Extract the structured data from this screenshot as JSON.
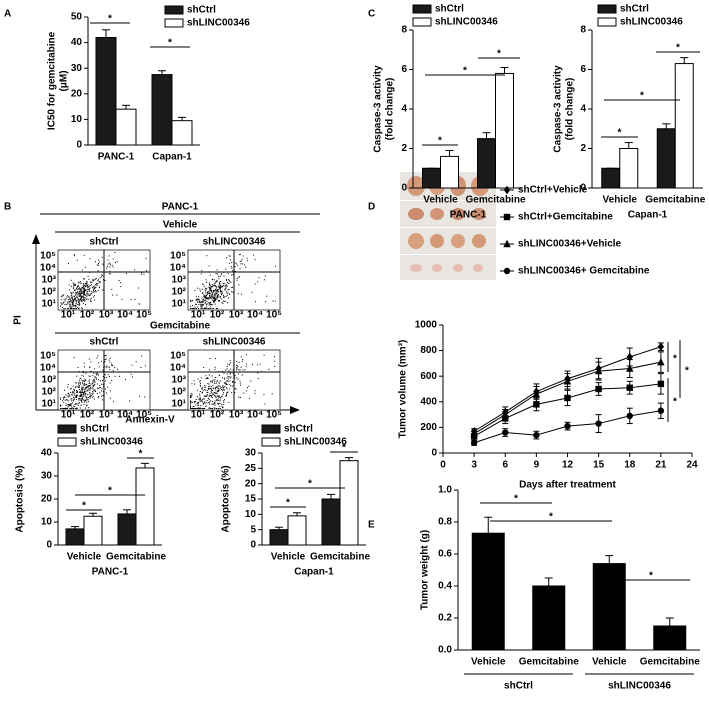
{
  "panel_labels": [
    "A",
    "B",
    "C",
    "D",
    "E"
  ],
  "flow_cytometry": {
    "title": "PANC-1",
    "vehicle": "Vehicle",
    "gemcitabine": "Gemcitabine",
    "groups": [
      "shCtrl",
      "shLINC00346"
    ],
    "y_axis": "PI",
    "x_axis": "Annexin-V",
    "axis_ticks": [
      "10¹",
      "10²",
      "10³",
      "10⁴",
      "10⁵"
    ]
  },
  "chart_data": [
    {
      "type": "bar",
      "categories": [
        "PANC-1",
        "Capan-1"
      ],
      "y_label": [
        "IC50 for gemcitabine",
        "(μM)"
      ],
      "series": [
        {
          "name": "shCtrl",
          "color": "#1a1a1a",
          "values": [
            42,
            27.5
          ],
          "errors": [
            3,
            1.5
          ]
        },
        {
          "name": "shLINC00346",
          "color": "#ffffff",
          "values": [
            14,
            9.5
          ],
          "errors": [
            1.5,
            1.3
          ]
        }
      ],
      "ylim": [
        0,
        50
      ],
      "yticks": [
        0,
        10,
        20,
        30,
        40,
        50
      ],
      "annotations": [
        "*",
        "*"
      ]
    },
    {
      "type": "bar",
      "categories": [
        "Vehicle",
        "Gemcitabine"
      ],
      "x_label": "PANC-1",
      "y_label": "Apoptosis (%)",
      "series": [
        {
          "name": "shCtrl",
          "color": "#1a1a1a",
          "values": [
            7,
            13.5
          ],
          "errors": [
            1,
            1.8
          ]
        },
        {
          "name": "shLINC00346",
          "color": "#ffffff",
          "values": [
            12.5,
            33.5
          ],
          "errors": [
            1.3,
            2
          ]
        }
      ],
      "ylim": [
        0,
        40
      ],
      "yticks": [
        0,
        10,
        20,
        30,
        40
      ],
      "annotations": [
        "*",
        "*",
        "*"
      ]
    },
    {
      "type": "bar",
      "categories": [
        "Vehicle",
        "Gemcitabine"
      ],
      "x_label": "Capan-1",
      "y_label": "Apoptosis (%)",
      "series": [
        {
          "name": "shCtrl",
          "color": "#1a1a1a",
          "values": [
            5,
            15
          ],
          "errors": [
            0.8,
            1.5
          ]
        },
        {
          "name": "shLINC00346",
          "color": "#ffffff",
          "values": [
            9.5,
            27.5
          ],
          "errors": [
            1,
            1
          ]
        }
      ],
      "ylim": [
        0,
        30
      ],
      "yticks": [
        0,
        5,
        10,
        15,
        20,
        25,
        30
      ],
      "annotations": [
        "*",
        "*",
        "*"
      ]
    },
    {
      "type": "bar",
      "categories": [
        "Vehicle",
        "Gemcitabine"
      ],
      "x_label": "PANC-1",
      "y_label": [
        "Caspase-3 activity",
        "(fold change)"
      ],
      "series": [
        {
          "name": "shCtrl",
          "color": "#1a1a1a",
          "values": [
            1,
            2.5
          ],
          "errors": [
            0,
            0.3
          ]
        },
        {
          "name": "shLINC00346",
          "color": "#ffffff",
          "values": [
            1.6,
            5.8
          ],
          "errors": [
            0.3,
            0.3
          ]
        }
      ],
      "ylim": [
        0,
        8
      ],
      "yticks": [
        0,
        2,
        4,
        6,
        8
      ],
      "annotations": [
        "*",
        "*",
        "*"
      ]
    },
    {
      "type": "bar",
      "categories": [
        "Vehicle",
        "Gemcitabine"
      ],
      "x_label": "Capan-1",
      "y_label": [
        "Caspase-3 activity",
        "(fold change)"
      ],
      "series": [
        {
          "name": "shCtrl",
          "color": "#1a1a1a",
          "values": [
            1,
            3
          ],
          "errors": [
            0,
            0.25
          ]
        },
        {
          "name": "shLINC00346",
          "color": "#ffffff",
          "values": [
            2,
            6.3
          ],
          "errors": [
            0.3,
            0.3
          ]
        }
      ],
      "ylim": [
        0,
        8
      ],
      "yticks": [
        0,
        2,
        4,
        6,
        8
      ],
      "annotations": [
        "*",
        "*",
        "*"
      ]
    },
    {
      "type": "line",
      "x": [
        3,
        6,
        9,
        12,
        15,
        18,
        21
      ],
      "x_label": "Days after treatment",
      "y_label": "Tumor volume (mm³)",
      "series": [
        {
          "name": "shCtrl+Vehicle",
          "color": "#000000",
          "marker": "diamond",
          "values": [
            170,
            320,
            480,
            580,
            660,
            750,
            830
          ],
          "errors": [
            20,
            40,
            60,
            60,
            80,
            70,
            30
          ]
        },
        {
          "name": "shCtrl+Gemcitabine",
          "color": "#000000",
          "marker": "square",
          "values": [
            130,
            270,
            380,
            430,
            500,
            510,
            540
          ],
          "errors": [
            20,
            40,
            50,
            60,
            50,
            50,
            80
          ]
        },
        {
          "name": "shLINC00346+Vehicle",
          "color": "#000000",
          "marker": "triangle",
          "values": [
            150,
            300,
            460,
            560,
            640,
            660,
            710
          ],
          "errors": [
            20,
            40,
            60,
            60,
            70,
            70,
            80
          ]
        },
        {
          "name": "shLINC00346+ Gemcitabine",
          "color": "#000000",
          "marker": "circle",
          "values": [
            80,
            160,
            140,
            210,
            230,
            290,
            330
          ],
          "errors": [
            20,
            30,
            30,
            30,
            70,
            60,
            60
          ]
        }
      ],
      "xlim": [
        0,
        24
      ],
      "xticks": [
        0,
        3,
        6,
        9,
        12,
        15,
        18,
        21,
        24
      ],
      "ylim": [
        0,
        1000
      ],
      "yticks": [
        0,
        200,
        400,
        600,
        800,
        1000
      ],
      "annotations": [
        "*",
        "*",
        "*"
      ]
    },
    {
      "type": "bar",
      "categories": [
        "Vehicle",
        "Gemcitabine",
        "Vehicle",
        "Gemcitabine"
      ],
      "groups": [
        "shCtrl",
        "shLINC00346"
      ],
      "y_label": "Tumor weight (g)",
      "color": "#000000",
      "values": [
        0.73,
        0.4,
        0.54,
        0.15
      ],
      "errors": [
        0.1,
        0.05,
        0.05,
        0.05
      ],
      "ylim": [
        0,
        1
      ],
      "yticks": [
        {
          "value": 0,
          "label": "0.0"
        },
        0.2,
        0.4,
        0.6,
        0.8,
        {
          "value": 1,
          "label": "1.0"
        }
      ],
      "annotations": [
        "*",
        "*",
        "*"
      ]
    }
  ]
}
